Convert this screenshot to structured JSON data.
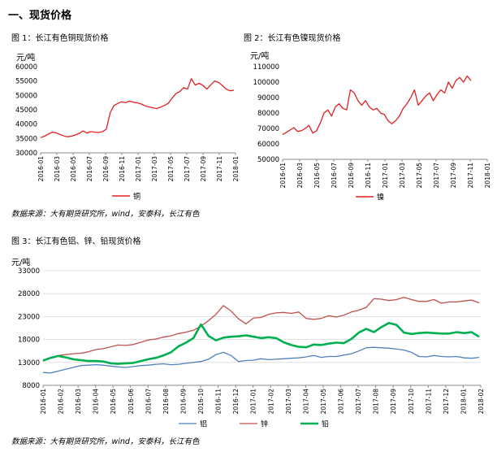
{
  "section_title": "一、现货价格",
  "source_top": "数据来源：大有期货研究所，wind，安泰科，长江有色",
  "source_bottom": "数据来源：大有期货研究所，wind，安泰科，长江有色",
  "chart_data": [
    {
      "id": "fig1",
      "type": "line",
      "caption": "图 1：长江有色铜现货价格",
      "unit": "元/吨",
      "ylim": [
        30000,
        60000
      ],
      "yticks": [
        "30000",
        "35000",
        "40000",
        "45000",
        "50000",
        "55000",
        "60000"
      ],
      "xticks": [
        "2016-01",
        "2016-03",
        "2016-05",
        "2016-07",
        "2016-09",
        "2016-11",
        "2017-01",
        "2017-03",
        "2017-05",
        "2017-07",
        "2017-09",
        "2017-11",
        "2018-01"
      ],
      "legend": "top-bottom",
      "series": [
        {
          "name": "铜",
          "color": "#e02020",
          "values": [
            35300,
            35800,
            36500,
            37200,
            37000,
            36400,
            35900,
            35600,
            35800,
            36200,
            36800,
            37600,
            36900,
            37400,
            37200,
            37100,
            37400,
            38200,
            44000,
            46500,
            47200,
            47800,
            47500,
            48000,
            47600,
            47400,
            47000,
            46400,
            46000,
            45700,
            45400,
            45900,
            46500,
            47200,
            49000,
            50600,
            51300,
            52700,
            52200,
            55800,
            53600,
            54200,
            53500,
            52200,
            53600,
            55000,
            54500,
            53500,
            52200,
            51600,
            51800
          ]
        }
      ]
    },
    {
      "id": "fig2",
      "type": "line",
      "caption": "图 2：长江有色镍现货价格",
      "unit": "元/吨",
      "ylim": [
        50000,
        110000
      ],
      "yticks": [
        "50000",
        "60000",
        "70000",
        "80000",
        "90000",
        "100000",
        "110000"
      ],
      "xticks": [
        "2016-01",
        "2016-03",
        "2016-05",
        "2016-07",
        "2016-09",
        "2016-11",
        "2017-01",
        "2017-03",
        "2017-05",
        "2017-07",
        "2017-09",
        "2017-11",
        "2018-01"
      ],
      "legend": "bottom",
      "series": [
        {
          "name": "镍",
          "color": "#e02020",
          "values": [
            66000,
            67500,
            69000,
            70500,
            68000,
            68500,
            70000,
            72000,
            67000,
            68500,
            73500,
            80000,
            82000,
            78000,
            84000,
            86000,
            83000,
            82000,
            95000,
            93000,
            88000,
            85000,
            88000,
            84000,
            82000,
            83000,
            80000,
            79000,
            75000,
            73000,
            75000,
            78000,
            83000,
            86000,
            90000,
            95000,
            85000,
            88000,
            91000,
            93000,
            88000,
            92000,
            95000,
            93000,
            100000,
            96000,
            101000,
            103000,
            100000,
            104000,
            101000
          ]
        }
      ]
    },
    {
      "id": "fig3",
      "type": "line",
      "caption": "图 3：长江有色铝、锌、铅现货价格",
      "unit": "元/吨",
      "ylim": [
        8000,
        33000
      ],
      "yticks": [
        "8000",
        "13000",
        "18000",
        "23000",
        "28000",
        "33000"
      ],
      "xticks": [
        "2016-01",
        "2016-02",
        "2016-03",
        "2016-04",
        "2016-05",
        "2016-06",
        "2016-07",
        "2016-08",
        "2016-09",
        "2016-10",
        "2016-11",
        "2016-12",
        "2017-01",
        "2017-02",
        "2017-03",
        "2017-04",
        "2017-05",
        "2017-06",
        "2017-07",
        "2017-08",
        "2017-09",
        "2017-10",
        "2017-11",
        "2017-12",
        "2018-01",
        "2018-02"
      ],
      "legend": "bottom",
      "series": [
        {
          "name": "铝",
          "color": "#4f81bd",
          "values": [
            10800,
            10700,
            11100,
            11500,
            11900,
            12300,
            12400,
            12500,
            12400,
            12200,
            12000,
            11900,
            12100,
            12300,
            12400,
            12600,
            12700,
            12500,
            12600,
            12800,
            13000,
            13200,
            13700,
            14700,
            15200,
            14500,
            13200,
            13400,
            13500,
            13800,
            13600,
            13700,
            13800,
            13900,
            14000,
            14200,
            14500,
            14100,
            14300,
            14300,
            14600,
            14900,
            15500,
            16200,
            16300,
            16200,
            16100,
            15900,
            15700,
            15200,
            14300,
            14200,
            14500,
            14300,
            14200,
            14300,
            14000,
            13900,
            14100
          ]
        },
        {
          "name": "锌",
          "color": "#c0504d",
          "values": [
            13300,
            13900,
            14500,
            14700,
            14900,
            15000,
            15300,
            15800,
            16000,
            16400,
            16800,
            16700,
            16900,
            17400,
            17900,
            18100,
            18500,
            18800,
            19300,
            19600,
            20000,
            20900,
            22100,
            23500,
            25400,
            24200,
            22500,
            21400,
            22700,
            22800,
            23500,
            23800,
            23900,
            23700,
            24000,
            22600,
            22400,
            22600,
            23200,
            22900,
            23300,
            24000,
            24400,
            25000,
            26900,
            26800,
            26500,
            26700,
            27200,
            26700,
            26300,
            26300,
            26700,
            25900,
            26200,
            26200,
            26400,
            26600,
            26000
          ]
        },
        {
          "name": "铅",
          "color": "#00b050",
          "values": [
            13400,
            14000,
            14400,
            14100,
            13700,
            13500,
            13300,
            13300,
            13200,
            12800,
            12700,
            12800,
            12900,
            13300,
            13700,
            14000,
            14500,
            15200,
            16500,
            17300,
            18300,
            21300,
            18800,
            17800,
            18400,
            18600,
            18700,
            18900,
            18600,
            18300,
            18500,
            18300,
            17400,
            16800,
            16400,
            16300,
            16900,
            16800,
            17100,
            17300,
            17200,
            18100,
            19500,
            20300,
            19600,
            20700,
            21600,
            21200,
            19500,
            19200,
            19400,
            19500,
            19400,
            19300,
            19300,
            19600,
            19400,
            19600,
            18600
          ]
        }
      ]
    }
  ]
}
